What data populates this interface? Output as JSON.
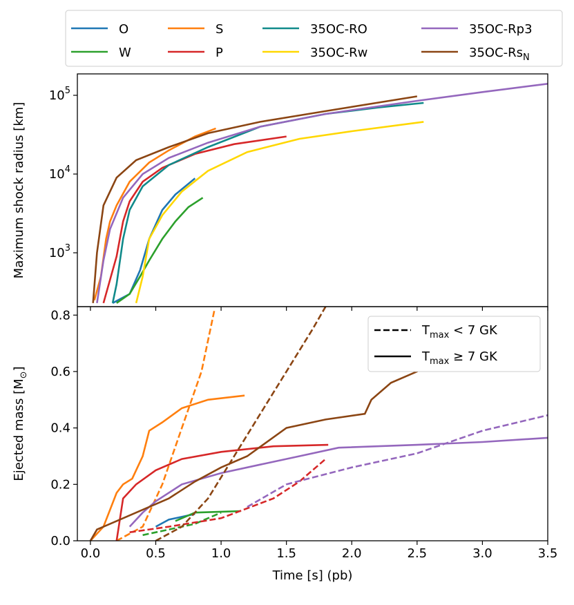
{
  "chart_data": [
    {
      "type": "line",
      "log_y": true,
      "ylabel": "Maximum shock radius [km]",
      "xlim": [
        -0.1,
        3.5
      ],
      "xticks": [
        0,
        0.5,
        1,
        1.5,
        2,
        2.5,
        3,
        3.5
      ],
      "ylim": [
        207,
        187000
      ],
      "yticks": [
        {
          "value": 1000,
          "label": "10",
          "exp": "3"
        },
        {
          "value": 10000,
          "label": "10",
          "exp": "4"
        },
        {
          "value": 100000,
          "label": "10",
          "exp": "5"
        }
      ],
      "series": [
        {
          "name": "O",
          "color": "#1f77b4",
          "x": [
            0.17,
            0.3,
            0.38,
            0.45,
            0.55,
            0.65,
            0.8
          ],
          "values": [
            230,
            300,
            600,
            1500,
            3500,
            5500,
            8800
          ]
        },
        {
          "name": "W",
          "color": "#2ca02c",
          "x": [
            0.2,
            0.3,
            0.38,
            0.45,
            0.55,
            0.65,
            0.75,
            0.86
          ],
          "values": [
            230,
            300,
            500,
            800,
            1500,
            2500,
            3800,
            5000
          ]
        },
        {
          "name": "S",
          "color": "#ff7f0e",
          "x": [
            0.03,
            0.08,
            0.12,
            0.15,
            0.2,
            0.3,
            0.45,
            0.6,
            0.8,
            0.96
          ],
          "values": [
            250,
            500,
            1500,
            2500,
            4000,
            8000,
            14000,
            20000,
            30000,
            38000
          ]
        },
        {
          "name": "P",
          "color": "#d62728",
          "x": [
            0.1,
            0.2,
            0.25,
            0.3,
            0.4,
            0.55,
            0.8,
            1.1,
            1.5
          ],
          "values": [
            230,
            900,
            2500,
            4500,
            8000,
            12000,
            18000,
            24000,
            30000
          ]
        },
        {
          "name": "35OC-RO",
          "color": "#108a8a",
          "x": [
            0.17,
            0.2,
            0.25,
            0.3,
            0.4,
            0.6,
            0.9,
            1.3,
            1.8,
            2.2,
            2.55
          ],
          "values": [
            230,
            400,
            1500,
            3500,
            7000,
            13000,
            22000,
            40000,
            58000,
            70000,
            80000
          ]
        },
        {
          "name": "35OC-Rw",
          "color": "#ffd700",
          "x": [
            0.35,
            0.4,
            0.45,
            0.55,
            0.7,
            0.9,
            1.2,
            1.6,
            2.0,
            2.55
          ],
          "values": [
            230,
            500,
            1500,
            3000,
            6000,
            11000,
            19000,
            28000,
            35000,
            46000
          ]
        },
        {
          "name": "35OC-Rp3",
          "color": "#9467bd",
          "x": [
            0.05,
            0.1,
            0.15,
            0.25,
            0.4,
            0.6,
            0.9,
            1.3,
            1.8,
            2.5,
            3.0,
            3.5
          ],
          "values": [
            230,
            800,
            2000,
            5000,
            10000,
            16000,
            25000,
            40000,
            58000,
            85000,
            110000,
            140000
          ]
        },
        {
          "name": "35OC-Rs",
          "name_sub": "N",
          "color": "#8b4513",
          "x": [
            0.02,
            0.05,
            0.1,
            0.2,
            0.35,
            0.6,
            0.9,
            1.3,
            1.8,
            2.5
          ],
          "values": [
            230,
            1000,
            4000,
            9000,
            15000,
            22000,
            33000,
            46000,
            63000,
            97000
          ]
        }
      ]
    },
    {
      "type": "line",
      "xlabel": "Time [s] (pb)",
      "ylabel": {
        "text": "Ejected mass [M",
        "sub": "⊙",
        "tail": "]"
      },
      "xlim": [
        -0.1,
        3.5
      ],
      "xticks": [
        {
          "value": 0,
          "label": "0.0"
        },
        {
          "value": 0.5,
          "label": "0.5"
        },
        {
          "value": 1,
          "label": "1.0"
        },
        {
          "value": 1.5,
          "label": "1.5"
        },
        {
          "value": 2,
          "label": "2.0"
        },
        {
          "value": 2.5,
          "label": "2.5"
        },
        {
          "value": 3,
          "label": "3.0"
        },
        {
          "value": 3.5,
          "label": "3.5"
        }
      ],
      "ylim": [
        0,
        0.83
      ],
      "yticks": [
        {
          "value": 0,
          "label": "0.0"
        },
        {
          "value": 0.2,
          "label": "0.2"
        },
        {
          "value": 0.4,
          "label": "0.4"
        },
        {
          "value": 0.6,
          "label": "0.6"
        },
        {
          "value": 0.8,
          "label": "0.8"
        }
      ],
      "legend": [
        {
          "label": "T",
          "sub": "max",
          "tail": " <  7 GK",
          "linestyle": "dashed"
        },
        {
          "label": "T",
          "sub": "max",
          "tail": " ≥  7 GK",
          "linestyle": "solid"
        }
      ],
      "series": [
        {
          "color": "#1f77b4",
          "linestyle": "solid",
          "x": [
            0.5,
            0.6,
            0.8
          ],
          "values": [
            0.05,
            0.075,
            0.095
          ]
        },
        {
          "color": "#2ca02c",
          "linestyle": "solid",
          "x": [
            0.65,
            0.8,
            1.15
          ],
          "values": [
            0.07,
            0.1,
            0.105
          ]
        },
        {
          "color": "#2ca02c",
          "linestyle": "dashed",
          "x": [
            0.4,
            0.6,
            0.8,
            1.0
          ],
          "values": [
            0.02,
            0.04,
            0.06,
            0.1
          ]
        },
        {
          "color": "#ff7f0e",
          "linestyle": "solid",
          "x": [
            0,
            0.1,
            0.2,
            0.25,
            0.32,
            0.4,
            0.45,
            0.55,
            0.7,
            0.9,
            1.18
          ],
          "values": [
            0,
            0.05,
            0.17,
            0.2,
            0.22,
            0.3,
            0.39,
            0.42,
            0.47,
            0.5,
            0.515
          ]
        },
        {
          "color": "#ff7f0e",
          "linestyle": "dashed",
          "x": [
            0.2,
            0.4,
            0.55,
            0.7,
            0.85,
            0.95
          ],
          "values": [
            0,
            0.05,
            0.2,
            0.4,
            0.6,
            0.82
          ]
        },
        {
          "color": "#d62728",
          "linestyle": "solid",
          "x": [
            0.2,
            0.25,
            0.35,
            0.5,
            0.7,
            1.0,
            1.4,
            1.82
          ],
          "values": [
            0,
            0.15,
            0.2,
            0.25,
            0.29,
            0.315,
            0.335,
            0.34
          ]
        },
        {
          "color": "#d62728",
          "linestyle": "dashed",
          "x": [
            0.3,
            0.6,
            1.0,
            1.4,
            1.6,
            1.8
          ],
          "values": [
            0.03,
            0.05,
            0.08,
            0.15,
            0.21,
            0.29
          ]
        },
        {
          "color": "#9467bd",
          "linestyle": "solid",
          "x": [
            0.3,
            0.4,
            0.5,
            0.7,
            1.0,
            1.3,
            1.6,
            1.9,
            2.5,
            3.0,
            3.5
          ],
          "values": [
            0.05,
            0.1,
            0.14,
            0.2,
            0.24,
            0.27,
            0.3,
            0.33,
            0.34,
            0.35,
            0.365
          ]
        },
        {
          "color": "#9467bd",
          "linestyle": "dashed",
          "x": [
            1.2,
            1.5,
            2.0,
            2.5,
            3.0,
            3.5
          ],
          "values": [
            0.12,
            0.2,
            0.26,
            0.31,
            0.39,
            0.445
          ]
        },
        {
          "color": "#8b4513",
          "linestyle": "solid",
          "x": [
            0,
            0.05,
            0.2,
            0.4,
            0.6,
            0.8,
            1.0,
            1.2,
            1.5,
            1.8,
            2.1,
            2.15,
            2.3,
            2.5,
            2.55
          ],
          "values": [
            0,
            0.04,
            0.07,
            0.11,
            0.15,
            0.21,
            0.26,
            0.3,
            0.4,
            0.43,
            0.45,
            0.5,
            0.56,
            0.6,
            0.67
          ]
        },
        {
          "color": "#8b4513",
          "linestyle": "dashed",
          "x": [
            0.5,
            0.7,
            0.9,
            1.1,
            1.3,
            1.5,
            1.7,
            1.8
          ],
          "values": [
            0,
            0.05,
            0.15,
            0.3,
            0.45,
            0.6,
            0.75,
            0.83
          ]
        }
      ]
    }
  ]
}
